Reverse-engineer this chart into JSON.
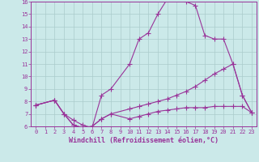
{
  "background_color": "#cbe9e9",
  "grid_color": "#aacccc",
  "line_color": "#993399",
  "xlim": [
    -0.5,
    23.5
  ],
  "ylim": [
    6,
    16
  ],
  "xticks": [
    0,
    1,
    2,
    3,
    4,
    5,
    6,
    7,
    8,
    9,
    10,
    11,
    12,
    13,
    14,
    15,
    16,
    17,
    18,
    19,
    20,
    21,
    22,
    23
  ],
  "yticks": [
    6,
    7,
    8,
    9,
    10,
    11,
    12,
    13,
    14,
    15,
    16
  ],
  "xlabel": "Windchill (Refroidissement éolien,°C)",
  "line1_x": [
    0,
    2,
    3,
    4,
    5,
    6,
    7,
    8,
    10,
    11,
    12,
    13,
    14,
    15,
    16,
    17,
    18,
    19,
    20,
    21,
    22,
    23
  ],
  "line1_y": [
    7.7,
    8.1,
    7.0,
    6.5,
    6.1,
    5.9,
    8.5,
    9.0,
    11.0,
    13.0,
    13.5,
    15.0,
    16.2,
    16.2,
    16.0,
    15.7,
    13.3,
    13.0,
    13.0,
    11.0,
    8.5,
    7.1
  ],
  "line2_x": [
    0,
    2,
    3,
    4,
    5,
    6,
    7,
    8,
    10,
    11,
    12,
    13,
    14,
    15,
    16,
    17,
    18,
    19,
    20,
    21,
    22,
    23
  ],
  "line2_y": [
    7.7,
    8.1,
    7.0,
    6.1,
    5.9,
    6.0,
    6.6,
    7.0,
    7.4,
    7.6,
    7.8,
    8.0,
    8.2,
    8.5,
    8.8,
    9.2,
    9.7,
    10.2,
    10.6,
    11.0,
    8.5,
    7.1
  ],
  "line3_x": [
    0,
    2,
    3,
    4,
    5,
    6,
    7,
    8,
    10,
    11,
    12,
    13,
    14,
    15,
    16,
    17,
    18,
    19,
    20,
    21,
    22,
    23
  ],
  "line3_y": [
    7.7,
    8.1,
    7.0,
    6.1,
    5.9,
    6.0,
    6.6,
    7.0,
    6.6,
    6.8,
    7.0,
    7.2,
    7.3,
    7.4,
    7.5,
    7.5,
    7.5,
    7.6,
    7.6,
    7.6,
    7.6,
    7.1
  ],
  "marker": "+",
  "markersize": 4,
  "markeredgewidth": 0.8,
  "linewidth": 0.8,
  "tick_fontsize": 5.0,
  "label_fontsize": 6.0
}
